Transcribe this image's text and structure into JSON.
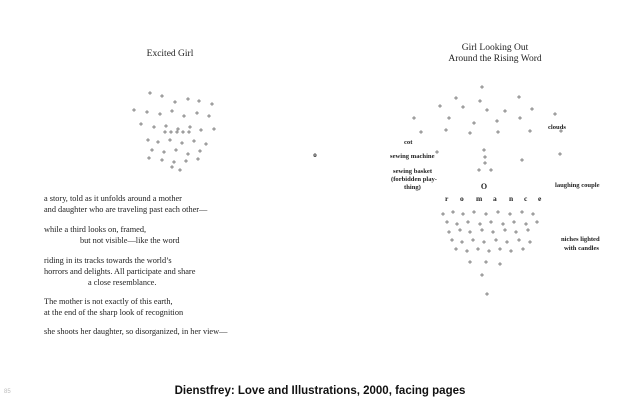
{
  "left_page": {
    "title": "Excited Girl",
    "stanzas": [
      {
        "lines": [
          "a story, told as it unfolds around a mother",
          "and daughter who are traveling past each other—"
        ]
      },
      {
        "lines": [
          "while a third looks on, framed,",
          "but not visible—like the word"
        ]
      },
      {
        "lines": [
          "riding in its tracks towards the world’s",
          "horrors and delights. All participate and share",
          "a close resemblance."
        ]
      },
      {
        "lines": [
          "The mother is not exactly of this earth,",
          "at the end of the sharp look of recognition"
        ]
      },
      {
        "lines": [
          "she shoots her daughter, so disorganized, in her view—"
        ]
      }
    ],
    "figure_glyph": "o"
  },
  "right_page": {
    "title_line1": "Girl Looking Out",
    "title_line2": "Around the Rising Word",
    "labels": {
      "clouds": "clouds",
      "cot": "cot",
      "sewing_machine": "sewing machine",
      "sewing_basket_1": "sewing basket",
      "sewing_basket_2": "(forbidden play-",
      "sewing_basket_3": "thing)",
      "laughing_couple": "laughing couple",
      "niches_1": "niches lighted",
      "niches_2": "with candles"
    },
    "romance_letters": [
      "r",
      "o",
      "m",
      "a",
      "n",
      "c",
      "e"
    ],
    "big_glyph": "O",
    "figure_glyph": "o"
  },
  "caption": "Dienstfrey: Love and Illustrations, 2000, facing pages",
  "corner_mark": "85"
}
